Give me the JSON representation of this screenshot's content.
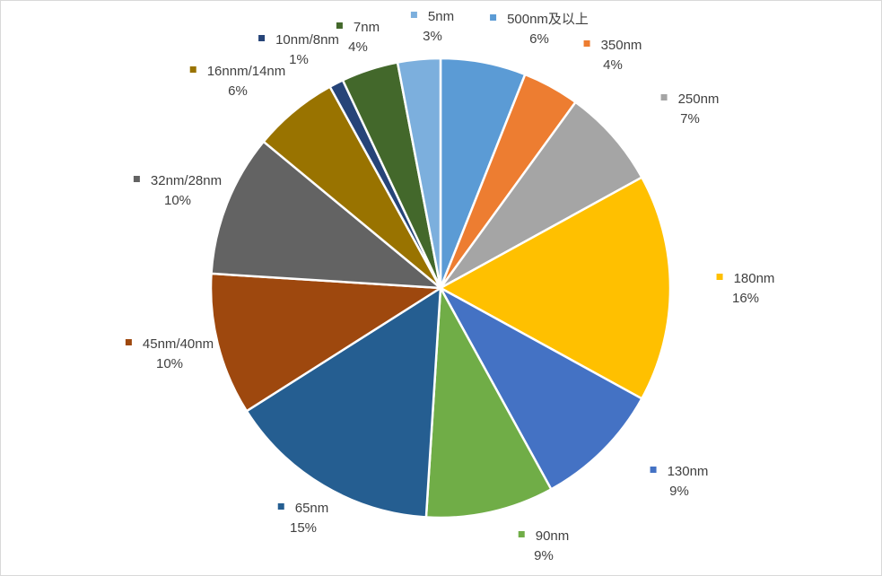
{
  "chart_data": {
    "type": "pie",
    "title": "",
    "categories": [
      "500nm及以上",
      "350nm",
      "250nm",
      "180nm",
      "130nm",
      "90nm",
      "65nm",
      "45nm/40nm",
      "32nm/28nm",
      "16nnm/14nm",
      "10nm/8nm",
      "7nm",
      "5nm"
    ],
    "values": [
      6,
      4,
      7,
      16,
      9,
      9,
      15,
      10,
      10,
      6,
      1,
      4,
      3
    ],
    "labels": [
      "6%",
      "4%",
      "7%",
      "16%",
      "9%",
      "9%",
      "15%",
      "10%",
      "10%",
      "6%",
      "1%",
      "4%",
      "3%"
    ],
    "colors": [
      "#5B9BD5",
      "#ED7D31",
      "#A5A5A5",
      "#FFC000",
      "#4472C4",
      "#70AD47",
      "#255E91",
      "#9E480E",
      "#636363",
      "#997300",
      "#264478",
      "#43682B",
      "#7CAFDD"
    ],
    "start_at": "12 o'clock",
    "direction": "clockwise",
    "legend": "none"
  }
}
